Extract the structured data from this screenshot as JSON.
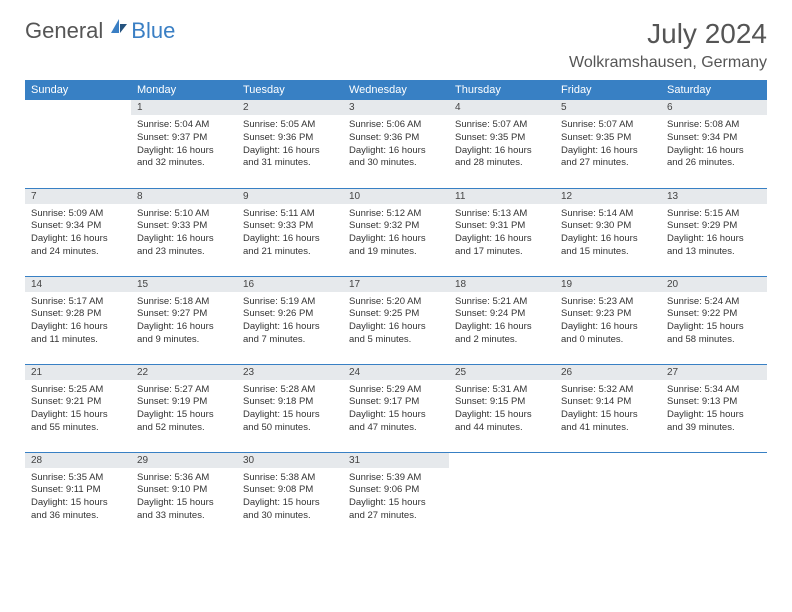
{
  "brand": {
    "word1": "General",
    "word2": "Blue",
    "color_general": "#555555",
    "color_blue": "#3a7fc4"
  },
  "title": {
    "month_year": "July 2024",
    "location": "Wolkramshausen, Germany"
  },
  "styling": {
    "header_bg": "#3880c4",
    "header_text": "#ffffff",
    "daynum_bg": "#e6e9ec",
    "text_color": "#333333",
    "row_border": "#3880c4",
    "font_family": "Arial",
    "month_fontsize": 28,
    "location_fontsize": 16,
    "th_fontsize": 11,
    "cell_fontsize": 9.5
  },
  "weekdays": [
    "Sunday",
    "Monday",
    "Tuesday",
    "Wednesday",
    "Thursday",
    "Friday",
    "Saturday"
  ],
  "weeks": [
    [
      {
        "day": "",
        "lines": []
      },
      {
        "day": "1",
        "lines": [
          "Sunrise: 5:04 AM",
          "Sunset: 9:37 PM",
          "Daylight: 16 hours and 32 minutes."
        ]
      },
      {
        "day": "2",
        "lines": [
          "Sunrise: 5:05 AM",
          "Sunset: 9:36 PM",
          "Daylight: 16 hours and 31 minutes."
        ]
      },
      {
        "day": "3",
        "lines": [
          "Sunrise: 5:06 AM",
          "Sunset: 9:36 PM",
          "Daylight: 16 hours and 30 minutes."
        ]
      },
      {
        "day": "4",
        "lines": [
          "Sunrise: 5:07 AM",
          "Sunset: 9:35 PM",
          "Daylight: 16 hours and 28 minutes."
        ]
      },
      {
        "day": "5",
        "lines": [
          "Sunrise: 5:07 AM",
          "Sunset: 9:35 PM",
          "Daylight: 16 hours and 27 minutes."
        ]
      },
      {
        "day": "6",
        "lines": [
          "Sunrise: 5:08 AM",
          "Sunset: 9:34 PM",
          "Daylight: 16 hours and 26 minutes."
        ]
      }
    ],
    [
      {
        "day": "7",
        "lines": [
          "Sunrise: 5:09 AM",
          "Sunset: 9:34 PM",
          "Daylight: 16 hours and 24 minutes."
        ]
      },
      {
        "day": "8",
        "lines": [
          "Sunrise: 5:10 AM",
          "Sunset: 9:33 PM",
          "Daylight: 16 hours and 23 minutes."
        ]
      },
      {
        "day": "9",
        "lines": [
          "Sunrise: 5:11 AM",
          "Sunset: 9:33 PM",
          "Daylight: 16 hours and 21 minutes."
        ]
      },
      {
        "day": "10",
        "lines": [
          "Sunrise: 5:12 AM",
          "Sunset: 9:32 PM",
          "Daylight: 16 hours and 19 minutes."
        ]
      },
      {
        "day": "11",
        "lines": [
          "Sunrise: 5:13 AM",
          "Sunset: 9:31 PM",
          "Daylight: 16 hours and 17 minutes."
        ]
      },
      {
        "day": "12",
        "lines": [
          "Sunrise: 5:14 AM",
          "Sunset: 9:30 PM",
          "Daylight: 16 hours and 15 minutes."
        ]
      },
      {
        "day": "13",
        "lines": [
          "Sunrise: 5:15 AM",
          "Sunset: 9:29 PM",
          "Daylight: 16 hours and 13 minutes."
        ]
      }
    ],
    [
      {
        "day": "14",
        "lines": [
          "Sunrise: 5:17 AM",
          "Sunset: 9:28 PM",
          "Daylight: 16 hours and 11 minutes."
        ]
      },
      {
        "day": "15",
        "lines": [
          "Sunrise: 5:18 AM",
          "Sunset: 9:27 PM",
          "Daylight: 16 hours and 9 minutes."
        ]
      },
      {
        "day": "16",
        "lines": [
          "Sunrise: 5:19 AM",
          "Sunset: 9:26 PM",
          "Daylight: 16 hours and 7 minutes."
        ]
      },
      {
        "day": "17",
        "lines": [
          "Sunrise: 5:20 AM",
          "Sunset: 9:25 PM",
          "Daylight: 16 hours and 5 minutes."
        ]
      },
      {
        "day": "18",
        "lines": [
          "Sunrise: 5:21 AM",
          "Sunset: 9:24 PM",
          "Daylight: 16 hours and 2 minutes."
        ]
      },
      {
        "day": "19",
        "lines": [
          "Sunrise: 5:23 AM",
          "Sunset: 9:23 PM",
          "Daylight: 16 hours and 0 minutes."
        ]
      },
      {
        "day": "20",
        "lines": [
          "Sunrise: 5:24 AM",
          "Sunset: 9:22 PM",
          "Daylight: 15 hours and 58 minutes."
        ]
      }
    ],
    [
      {
        "day": "21",
        "lines": [
          "Sunrise: 5:25 AM",
          "Sunset: 9:21 PM",
          "Daylight: 15 hours and 55 minutes."
        ]
      },
      {
        "day": "22",
        "lines": [
          "Sunrise: 5:27 AM",
          "Sunset: 9:19 PM",
          "Daylight: 15 hours and 52 minutes."
        ]
      },
      {
        "day": "23",
        "lines": [
          "Sunrise: 5:28 AM",
          "Sunset: 9:18 PM",
          "Daylight: 15 hours and 50 minutes."
        ]
      },
      {
        "day": "24",
        "lines": [
          "Sunrise: 5:29 AM",
          "Sunset: 9:17 PM",
          "Daylight: 15 hours and 47 minutes."
        ]
      },
      {
        "day": "25",
        "lines": [
          "Sunrise: 5:31 AM",
          "Sunset: 9:15 PM",
          "Daylight: 15 hours and 44 minutes."
        ]
      },
      {
        "day": "26",
        "lines": [
          "Sunrise: 5:32 AM",
          "Sunset: 9:14 PM",
          "Daylight: 15 hours and 41 minutes."
        ]
      },
      {
        "day": "27",
        "lines": [
          "Sunrise: 5:34 AM",
          "Sunset: 9:13 PM",
          "Daylight: 15 hours and 39 minutes."
        ]
      }
    ],
    [
      {
        "day": "28",
        "lines": [
          "Sunrise: 5:35 AM",
          "Sunset: 9:11 PM",
          "Daylight: 15 hours and 36 minutes."
        ]
      },
      {
        "day": "29",
        "lines": [
          "Sunrise: 5:36 AM",
          "Sunset: 9:10 PM",
          "Daylight: 15 hours and 33 minutes."
        ]
      },
      {
        "day": "30",
        "lines": [
          "Sunrise: 5:38 AM",
          "Sunset: 9:08 PM",
          "Daylight: 15 hours and 30 minutes."
        ]
      },
      {
        "day": "31",
        "lines": [
          "Sunrise: 5:39 AM",
          "Sunset: 9:06 PM",
          "Daylight: 15 hours and 27 minutes."
        ]
      },
      {
        "day": "",
        "lines": []
      },
      {
        "day": "",
        "lines": []
      },
      {
        "day": "",
        "lines": []
      }
    ]
  ]
}
